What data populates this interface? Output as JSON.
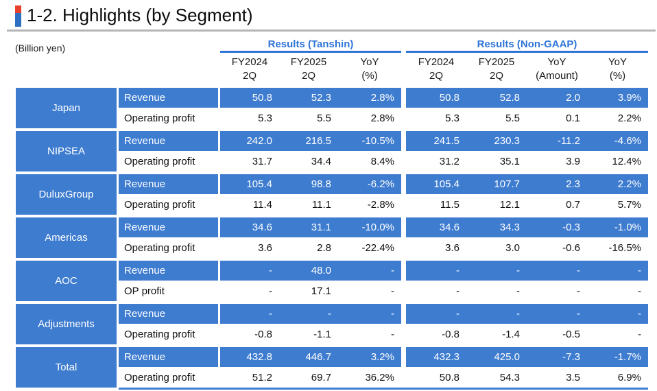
{
  "page": {
    "title": "1-2. Highlights (by Segment)",
    "unit_label": "(Billion yen)"
  },
  "colors": {
    "cell_blue": "#3E7CD0",
    "header_blue": "#2E74D8",
    "marker_red": "#E8402C",
    "marker_blue": "#2D6FC0",
    "divider_gray": "#B5B5B5"
  },
  "table": {
    "groups": [
      {
        "id": "tanshin",
        "label": "Results (Tanshin)",
        "columns": [
          {
            "line1": "FY2024",
            "line2": "2Q"
          },
          {
            "line1": "FY2025",
            "line2": "2Q"
          },
          {
            "line1": "YoY",
            "line2": "(%)"
          }
        ]
      },
      {
        "id": "nongaap",
        "label": "Results (Non-GAAP)",
        "columns": [
          {
            "line1": "FY2024",
            "line2": "2Q"
          },
          {
            "line1": "FY2025",
            "line2": "2Q"
          },
          {
            "line1": "YoY",
            "line2": "(Amount)"
          },
          {
            "line1": "YoY",
            "line2": "(%)"
          }
        ]
      }
    ],
    "segments": [
      {
        "name": "Japan",
        "rows": [
          {
            "label": "Revenue",
            "highlight": true,
            "tanshin": [
              "50.8",
              "52.3",
              "2.8%"
            ],
            "nongaap": [
              "50.8",
              "52.8",
              "2.0",
              "3.9%"
            ]
          },
          {
            "label": "Operating profit",
            "highlight": false,
            "tanshin": [
              "5.3",
              "5.5",
              "2.8%"
            ],
            "nongaap": [
              "5.3",
              "5.5",
              "0.1",
              "2.2%"
            ]
          }
        ]
      },
      {
        "name": "NIPSEA",
        "rows": [
          {
            "label": "Revenue",
            "highlight": true,
            "tanshin": [
              "242.0",
              "216.5",
              "-10.5%"
            ],
            "nongaap": [
              "241.5",
              "230.3",
              "-11.2",
              "-4.6%"
            ]
          },
          {
            "label": "Operating profit",
            "highlight": false,
            "tanshin": [
              "31.7",
              "34.4",
              "8.4%"
            ],
            "nongaap": [
              "31.2",
              "35.1",
              "3.9",
              "12.4%"
            ]
          }
        ]
      },
      {
        "name": "DuluxGroup",
        "rows": [
          {
            "label": "Revenue",
            "highlight": true,
            "tanshin": [
              "105.4",
              "98.8",
              "-6.2%"
            ],
            "nongaap": [
              "105.4",
              "107.7",
              "2.3",
              "2.2%"
            ]
          },
          {
            "label": "Operating profit",
            "highlight": false,
            "tanshin": [
              "11.4",
              "11.1",
              "-2.8%"
            ],
            "nongaap": [
              "11.5",
              "12.1",
              "0.7",
              "5.7%"
            ]
          }
        ]
      },
      {
        "name": "Americas",
        "rows": [
          {
            "label": "Revenue",
            "highlight": true,
            "tanshin": [
              "34.6",
              "31.1",
              "-10.0%"
            ],
            "nongaap": [
              "34.6",
              "34.3",
              "-0.3",
              "-1.0%"
            ]
          },
          {
            "label": "Operating profit",
            "highlight": false,
            "tanshin": [
              "3.6",
              "2.8",
              "-22.4%"
            ],
            "nongaap": [
              "3.6",
              "3.0",
              "-0.6",
              "-16.5%"
            ]
          }
        ]
      },
      {
        "name": "AOC",
        "rows": [
          {
            "label": "Revenue",
            "highlight": true,
            "tanshin": [
              "-",
              "48.0",
              "-"
            ],
            "nongaap": [
              "-",
              "-",
              "-",
              "-"
            ]
          },
          {
            "label": "OP profit",
            "highlight": false,
            "tanshin": [
              "-",
              "17.1",
              "-"
            ],
            "nongaap": [
              "-",
              "-",
              "-",
              "-"
            ]
          }
        ]
      },
      {
        "name": "Adjustments",
        "rows": [
          {
            "label": "Revenue",
            "highlight": true,
            "tanshin": [
              "-",
              "-",
              "-"
            ],
            "nongaap": [
              "-",
              "-",
              "-",
              "-"
            ]
          },
          {
            "label": "Operating profit",
            "highlight": false,
            "tanshin": [
              "-0.8",
              "-1.1",
              "-"
            ],
            "nongaap": [
              "-0.8",
              "-1.4",
              "-0.5",
              "-"
            ]
          }
        ]
      },
      {
        "name": "Total",
        "rows": [
          {
            "label": "Revenue",
            "highlight": true,
            "tanshin": [
              "432.8",
              "446.7",
              "3.2%"
            ],
            "nongaap": [
              "432.3",
              "425.0",
              "-7.3",
              "-1.7%"
            ]
          },
          {
            "label": "Operating profit",
            "highlight": false,
            "tanshin": [
              "51.2",
              "69.7",
              "36.2%"
            ],
            "nongaap": [
              "50.8",
              "54.3",
              "3.5",
              "6.9%"
            ]
          }
        ]
      }
    ]
  }
}
